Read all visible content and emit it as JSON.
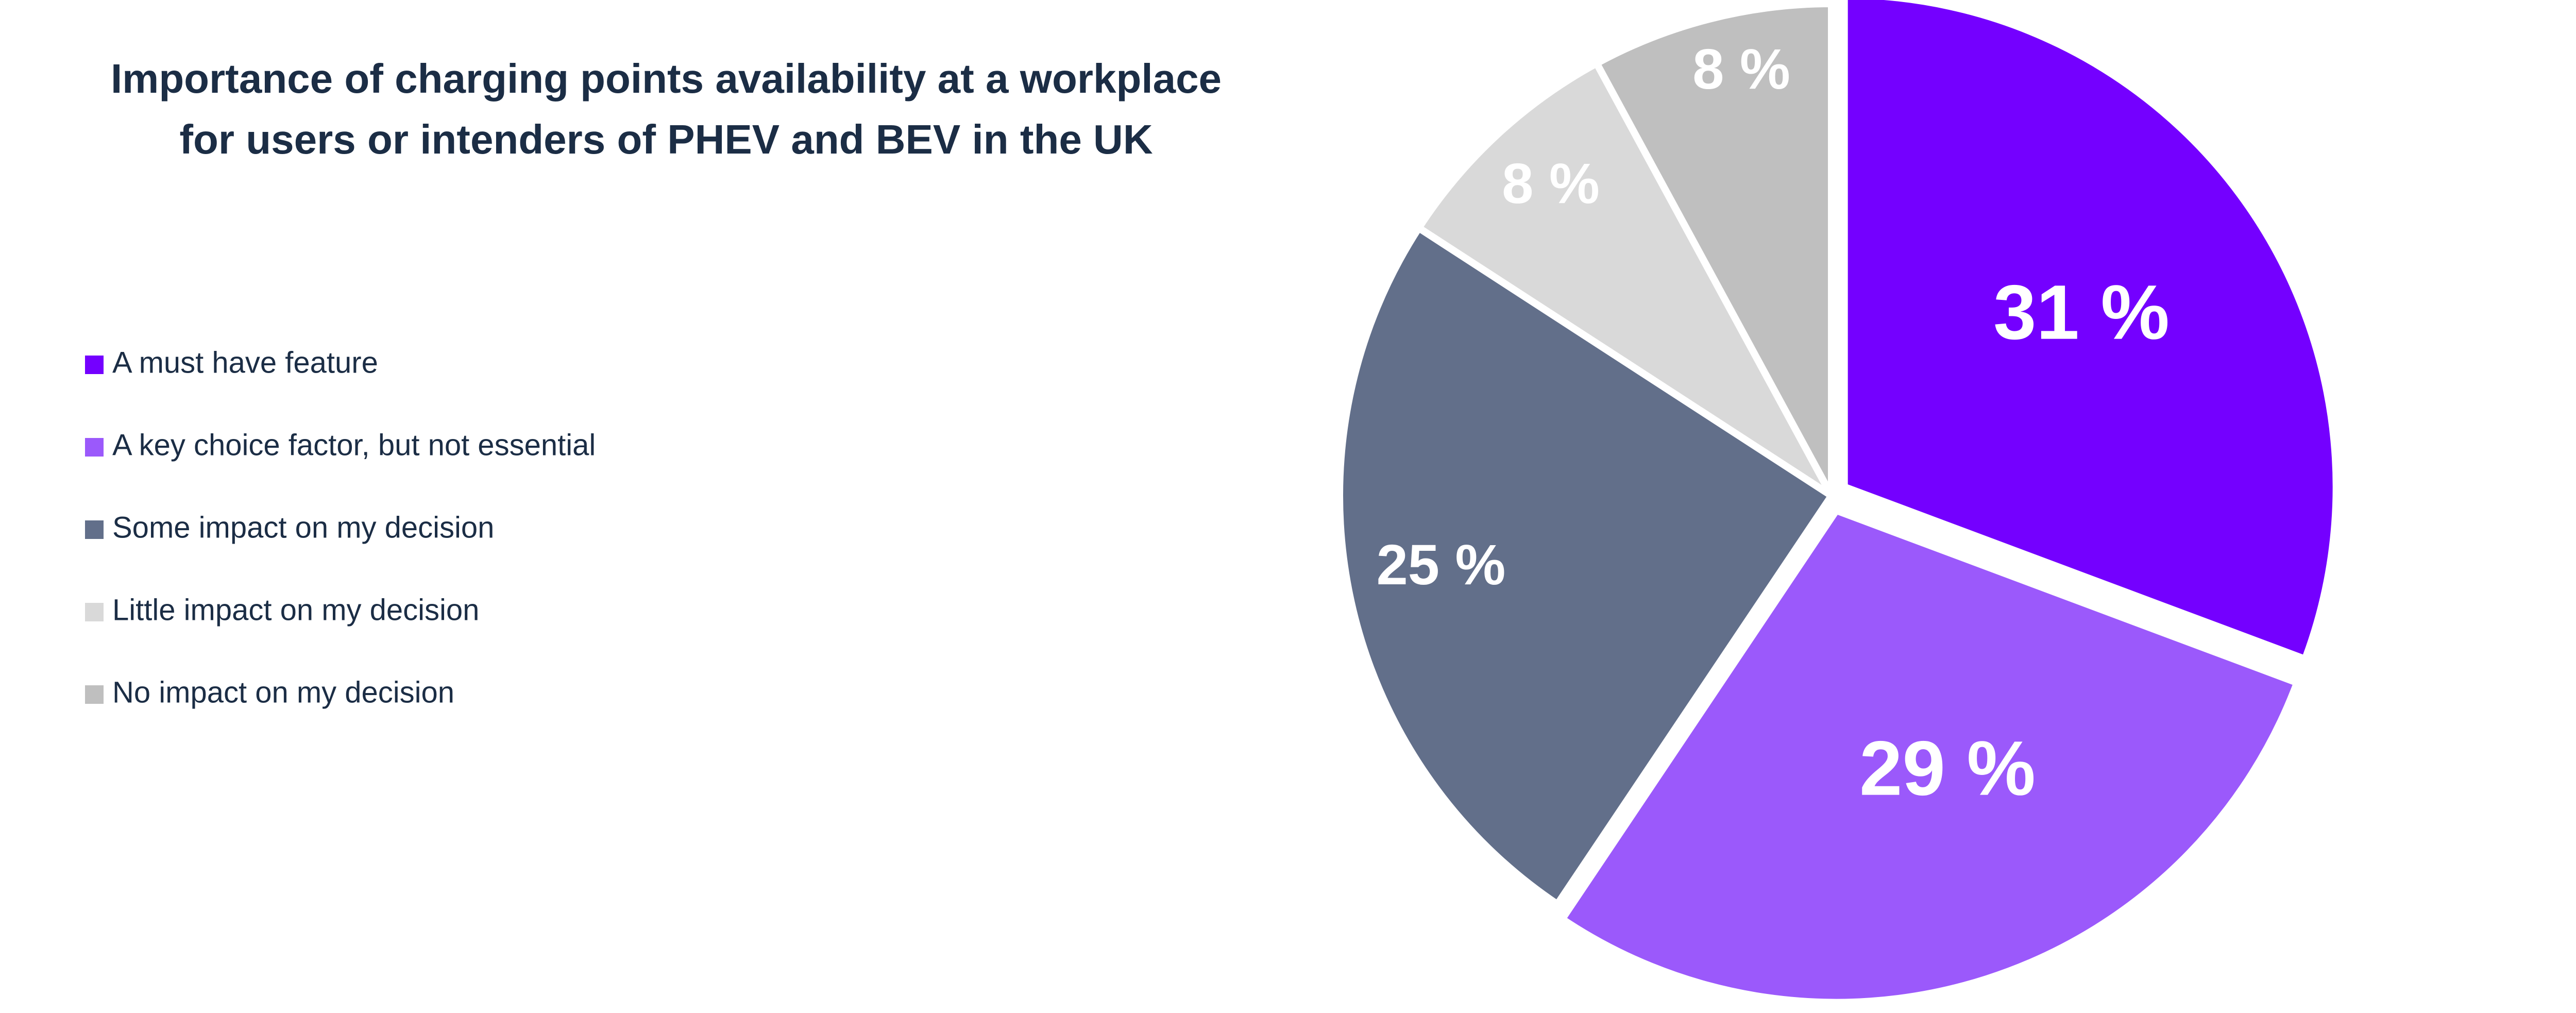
{
  "chart_data": {
    "type": "pie",
    "title_lines": [
      "Importance of charging points availability at a workplace",
      "for users or intenders of PHEV and BEV in the UK"
    ],
    "start_angle_deg": 0,
    "direction": "clockwise",
    "legend_placement": "left",
    "value_suffix": " %",
    "slices": [
      {
        "label": "A must have feature",
        "value": 31,
        "color": "#7400ff",
        "exploded": true
      },
      {
        "label": "A key choice factor, but not essential",
        "value": 29,
        "color": "#9b59fb",
        "exploded": true
      },
      {
        "label": "Some impact on my decision",
        "value": 25,
        "color": "#626f8a",
        "exploded": false
      },
      {
        "label": "Little impact on my decision",
        "value": 8,
        "color": "#d9d9d9",
        "exploded": false
      },
      {
        "label": "No impact on my decision",
        "value": 8,
        "color": "#bfbfbf",
        "exploded": false
      }
    ]
  }
}
